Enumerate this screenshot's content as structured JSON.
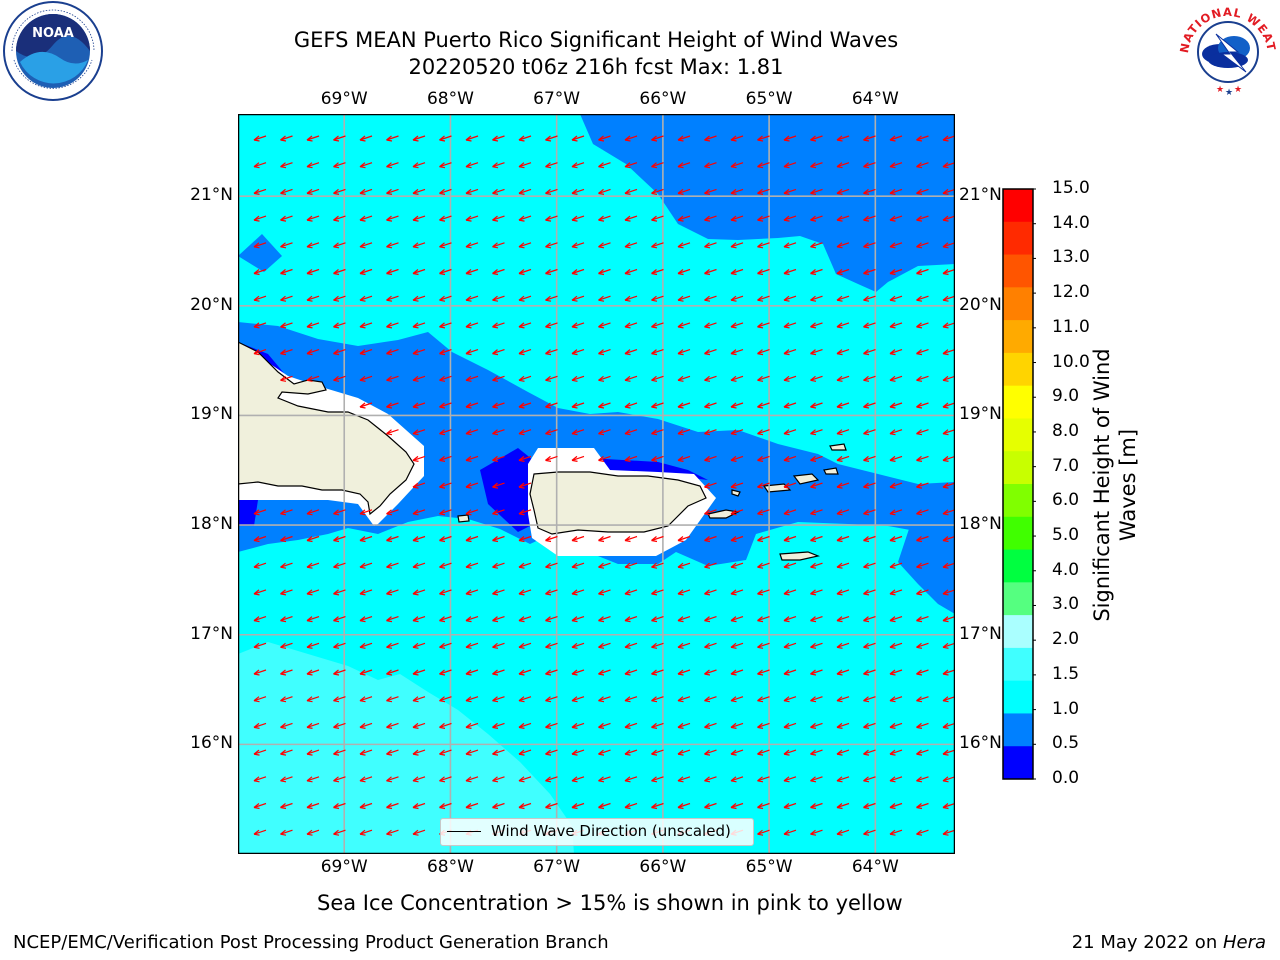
{
  "header": {
    "title_line1": "GEFS MEAN Puerto Rico Significant Height of Wind Waves",
    "title_line2": "20220520 t06z 216h fcst   Max: 1.81"
  },
  "logos": {
    "left": {
      "text": "NOAA",
      "ring_text": "NATIONAL OCEANIC AND ATMOSPHERIC ADMINISTRATION · U.S. DEPARTMENT OF COMMERCE"
    },
    "right": {
      "ring_text": "NATIONAL WEATHER SERVICE"
    }
  },
  "map": {
    "lon_labels": [
      "69°W",
      "68°W",
      "67°W",
      "66°W",
      "65°W",
      "64°W"
    ],
    "lat_labels": [
      "21°N",
      "20°N",
      "19°N",
      "18°N",
      "17°N",
      "16°N"
    ],
    "lon_values": [
      -69,
      -68,
      -67,
      -66,
      -65,
      -64
    ],
    "lat_values": [
      21,
      20,
      19,
      18,
      17,
      16
    ],
    "extent": {
      "lon_min": -70,
      "lon_max": -63.25,
      "lat_min": 15,
      "lat_max": 21.75
    },
    "arrow_direction": "east-to-west (slightly south-southwest)",
    "legend": {
      "label": "Wind Wave Direction (unscaled)"
    },
    "colors": {
      "ocean_base": "#00ffff",
      "band_0_5_1_0": "#0080ff",
      "band_0_0_0_5": "#0000ff",
      "band_1_5_2_0": "#40ffff",
      "land": "#f0f0dc",
      "arrow": "#ff0000",
      "grid": "#b0b0b0"
    }
  },
  "colorbar": {
    "title": "Significant Height of Wind Waves [m]",
    "ticks": [
      "15.0",
      "14.0",
      "13.0",
      "12.0",
      "11.0",
      "10.0",
      "9.0",
      "8.0",
      "7.0",
      "6.0",
      "5.0",
      "4.0",
      "3.0",
      "2.0",
      "1.5",
      "1.0",
      "0.5",
      "0.0"
    ],
    "colors_top_to_bottom": [
      "#ff0000",
      "#ff2a00",
      "#ff5500",
      "#ff8000",
      "#ffaa00",
      "#ffd400",
      "#ffff00",
      "#e6ff00",
      "#c8ff00",
      "#80ff00",
      "#40ff00",
      "#00ff40",
      "#55ff80",
      "#aaffff",
      "#40ffff",
      "#00ffff",
      "#0080ff",
      "#0000ff"
    ]
  },
  "note": "Sea Ice Concentration > 15% is shown in pink to yellow",
  "footer": {
    "left": "NCEP/EMC/Verification Post Processing Product Generation Branch",
    "right_prefix": "21 May 2022 on ",
    "right_host": "Hera"
  }
}
